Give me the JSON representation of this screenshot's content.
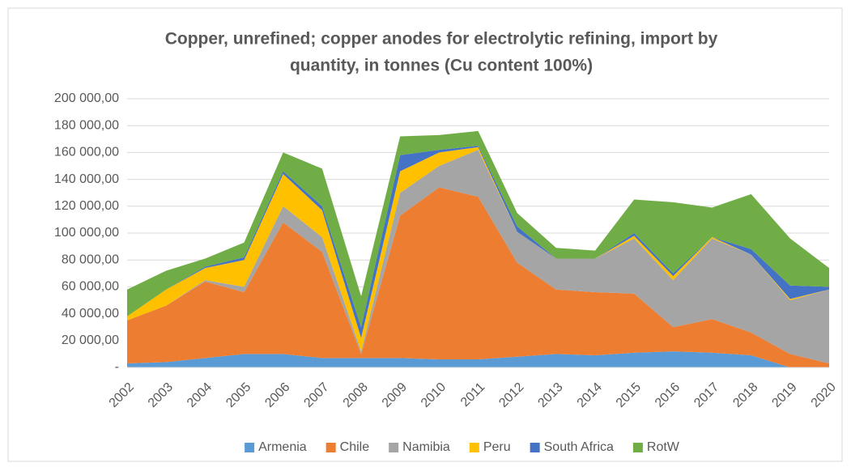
{
  "chart_data": {
    "type": "stacked_area",
    "title": [
      "Copper, unrefined; copper anodes for electrolytic refining, import by",
      "quantity, in tonnes (Cu content 100%)"
    ],
    "categories": [
      "2002",
      "2003",
      "2004",
      "2005",
      "2006",
      "2007",
      "2008",
      "2009",
      "2010",
      "2011",
      "2012",
      "2013",
      "2014",
      "2015",
      "2016",
      "2017",
      "2018",
      "2019",
      "2020"
    ],
    "series": [
      {
        "name": "Armenia",
        "color": "#5b9bd5",
        "values": [
          3000,
          4000,
          7000,
          10000,
          10000,
          7000,
          7000,
          7000,
          6000,
          6000,
          8000,
          10000,
          9000,
          11000,
          12000,
          11000,
          9000,
          0,
          0
        ]
      },
      {
        "name": "Chile",
        "color": "#ed7d31",
        "values": [
          32000,
          42000,
          57000,
          46000,
          98000,
          79000,
          3000,
          106000,
          128000,
          121000,
          70000,
          48000,
          47000,
          44000,
          18000,
          25000,
          17000,
          10000,
          3000
        ]
      },
      {
        "name": "Namibia",
        "color": "#a5a5a5",
        "values": [
          0,
          0,
          1000,
          4000,
          12000,
          11000,
          2000,
          17000,
          16000,
          35000,
          23000,
          23000,
          25000,
          41000,
          35000,
          60000,
          58000,
          40000,
          55000
        ]
      },
      {
        "name": "Peru",
        "color": "#ffc000",
        "values": [
          3000,
          12000,
          9000,
          20000,
          24000,
          20000,
          10000,
          16000,
          10000,
          2000,
          0,
          0,
          0,
          2000,
          3000,
          1000,
          0,
          1000,
          0
        ]
      },
      {
        "name": "South Africa",
        "color": "#4472c4",
        "values": [
          0,
          0,
          1000,
          2000,
          2000,
          3000,
          8000,
          12000,
          2000,
          1000,
          4000,
          0,
          0,
          2000,
          2000,
          0,
          4000,
          10000,
          2000
        ]
      },
      {
        "name": "RotW",
        "color": "#70ad47",
        "values": [
          20000,
          14000,
          6000,
          11000,
          14000,
          28000,
          23000,
          14000,
          11000,
          11000,
          10000,
          8000,
          6000,
          25000,
          53000,
          22000,
          41000,
          35000,
          14000
        ]
      }
    ],
    "ylim": [
      0,
      200000
    ],
    "yticks": [
      {
        "value": 0,
        "label": "-"
      },
      {
        "value": 20000,
        "label": "20 000,00"
      },
      {
        "value": 40000,
        "label": "40 000,00"
      },
      {
        "value": 60000,
        "label": "60 000,00"
      },
      {
        "value": 80000,
        "label": "80 000,00"
      },
      {
        "value": 100000,
        "label": "100 000,00"
      },
      {
        "value": 120000,
        "label": "120 000,00"
      },
      {
        "value": 140000,
        "label": "140 000,00"
      },
      {
        "value": 160000,
        "label": "160 000,00"
      },
      {
        "value": 180000,
        "label": "180 000,00"
      },
      {
        "value": 200000,
        "label": "200 000,00"
      }
    ],
    "grid": true,
    "legend": "bottom"
  }
}
